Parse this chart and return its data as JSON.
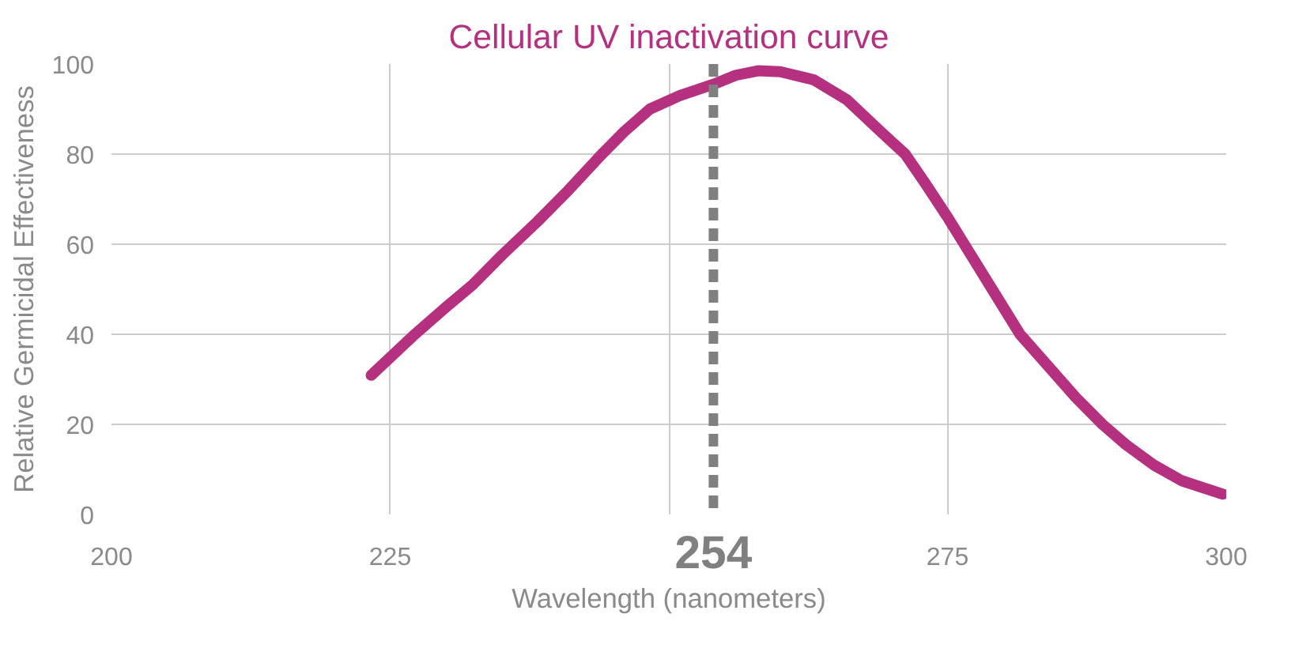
{
  "chart_data": {
    "type": "line",
    "title": "Cellular UV inactivation curve",
    "xlabel": "Wavelength (nanometers)",
    "ylabel": "Relative Germicidal Effectiveness",
    "x": [
      223.3,
      227,
      230,
      232.4,
      235,
      238.2,
      241,
      244,
      246,
      248.3,
      251,
      254,
      256,
      258,
      260,
      263,
      266,
      269,
      271.2,
      273,
      275,
      277,
      279,
      281.5,
      284,
      286.5,
      288.9,
      291,
      293.5,
      296,
      299.7
    ],
    "series": [
      {
        "color": "#b5317f",
        "values": [
          30.9,
          39.5,
          46,
          51,
          57.5,
          65,
          72,
          80,
          85,
          90,
          93,
          95.5,
          97.5,
          98.5,
          98.3,
          96.5,
          92,
          85,
          80,
          73.5,
          66,
          58,
          50,
          40,
          33,
          26,
          20,
          15.5,
          11,
          7.5,
          4.5
        ]
      }
    ],
    "xlim": [
      200,
      300
    ],
    "ylim": [
      0,
      100
    ],
    "xticks": [
      200,
      225,
      {
        "value": 250,
        "label": null
      },
      275,
      300
    ],
    "yticks": [
      0,
      20,
      40,
      60,
      80,
      100
    ],
    "ref_lines": [
      {
        "axis": "x",
        "value": 254,
        "label": "254",
        "color": "#808080",
        "line_style": "dashed"
      }
    ],
    "grid": true
  }
}
